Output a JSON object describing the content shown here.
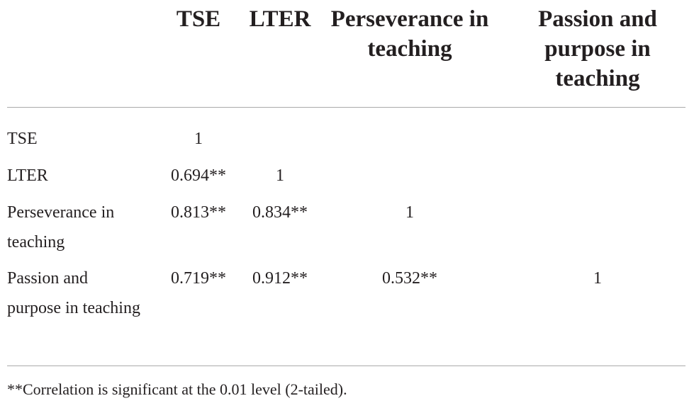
{
  "table": {
    "header": [
      "TSE",
      "LTER",
      "Perseverance in teaching",
      "Passion and purpose in teaching"
    ],
    "rows": [
      [
        "TSE",
        "1"
      ],
      [
        "LTER",
        "0.694**",
        "1"
      ],
      [
        "Perseverance in teaching",
        "0.813**",
        "0.834**",
        "1"
      ],
      [
        "Passion and purpose in teaching",
        "0.719**",
        "0.912**",
        "0.532**",
        "1"
      ]
    ],
    "footnote": "**Correlation is significant at the 0.01 level (2-tailed)."
  }
}
